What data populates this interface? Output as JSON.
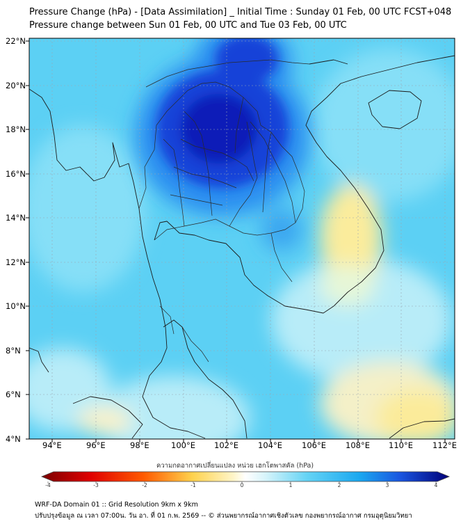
{
  "title": "Pressure Change (hPa) - [Data Assimilation] _ Initial Time : Sunday 01 Feb, 00 UTC FCST+048",
  "subtitle": "Pressure change between Sun 01 Feb, 00 UTC and Tue 03 Feb, 00 UTC",
  "map": {
    "lat_range_degN": [
      4,
      22.3
    ],
    "lon_range_degE": [
      93,
      112.5
    ],
    "lat_labels": [
      "22°N",
      "20°N",
      "18°N",
      "16°N",
      "14°N",
      "12°N",
      "10°N",
      "8°N",
      "6°N",
      "4°N"
    ],
    "lon_labels": [
      "94°E",
      "96°E",
      "98°E",
      "100°E",
      "102°E",
      "104°E",
      "106°E",
      "108°E",
      "110°E",
      "112°E"
    ],
    "regions": [
      {
        "name": "strong pressure rise",
        "area": "northern Thailand, Laos, southern China",
        "level": "dark blue"
      },
      {
        "name": "slight pressure fall",
        "area": "southern Vietnam coast",
        "level": "yellow"
      },
      {
        "name": "slight pressure fall",
        "area": "South China Sea southeast",
        "level": "pale yellow"
      }
    ]
  },
  "colorbar": {
    "label": "ความกดอากาศเปลี่ยนแปลง หน่วย เฮกโตพาสคัล (hPa)",
    "ticks": [
      "-4",
      "-3",
      "-2",
      "-1",
      "0",
      "1",
      "2",
      "3",
      "4"
    ],
    "range": [
      -4,
      4
    ],
    "colors": {
      "min": "#7a0000",
      "neg_mid": "#ff2a00",
      "neg_low": "#ffd24d",
      "zero": "#ffffff",
      "pos_low": "#66d4f5",
      "pos_mid": "#1a7ff0",
      "max": "#000078"
    }
  },
  "footer": {
    "line1": "WRF-DA Domain 01 :: Grid Resolution 9km x 9km",
    "line2": "ปรับปรุงข้อมูล ณ เวลา 07:00น. วัน อา. ที่ 01 ก.พ. 2569 -- © ส่วนพยากรณ์อากาศเชิงตัวเลข กองพยากรณ์อากาศ กรมอุตุนิยมวิทยา"
  }
}
